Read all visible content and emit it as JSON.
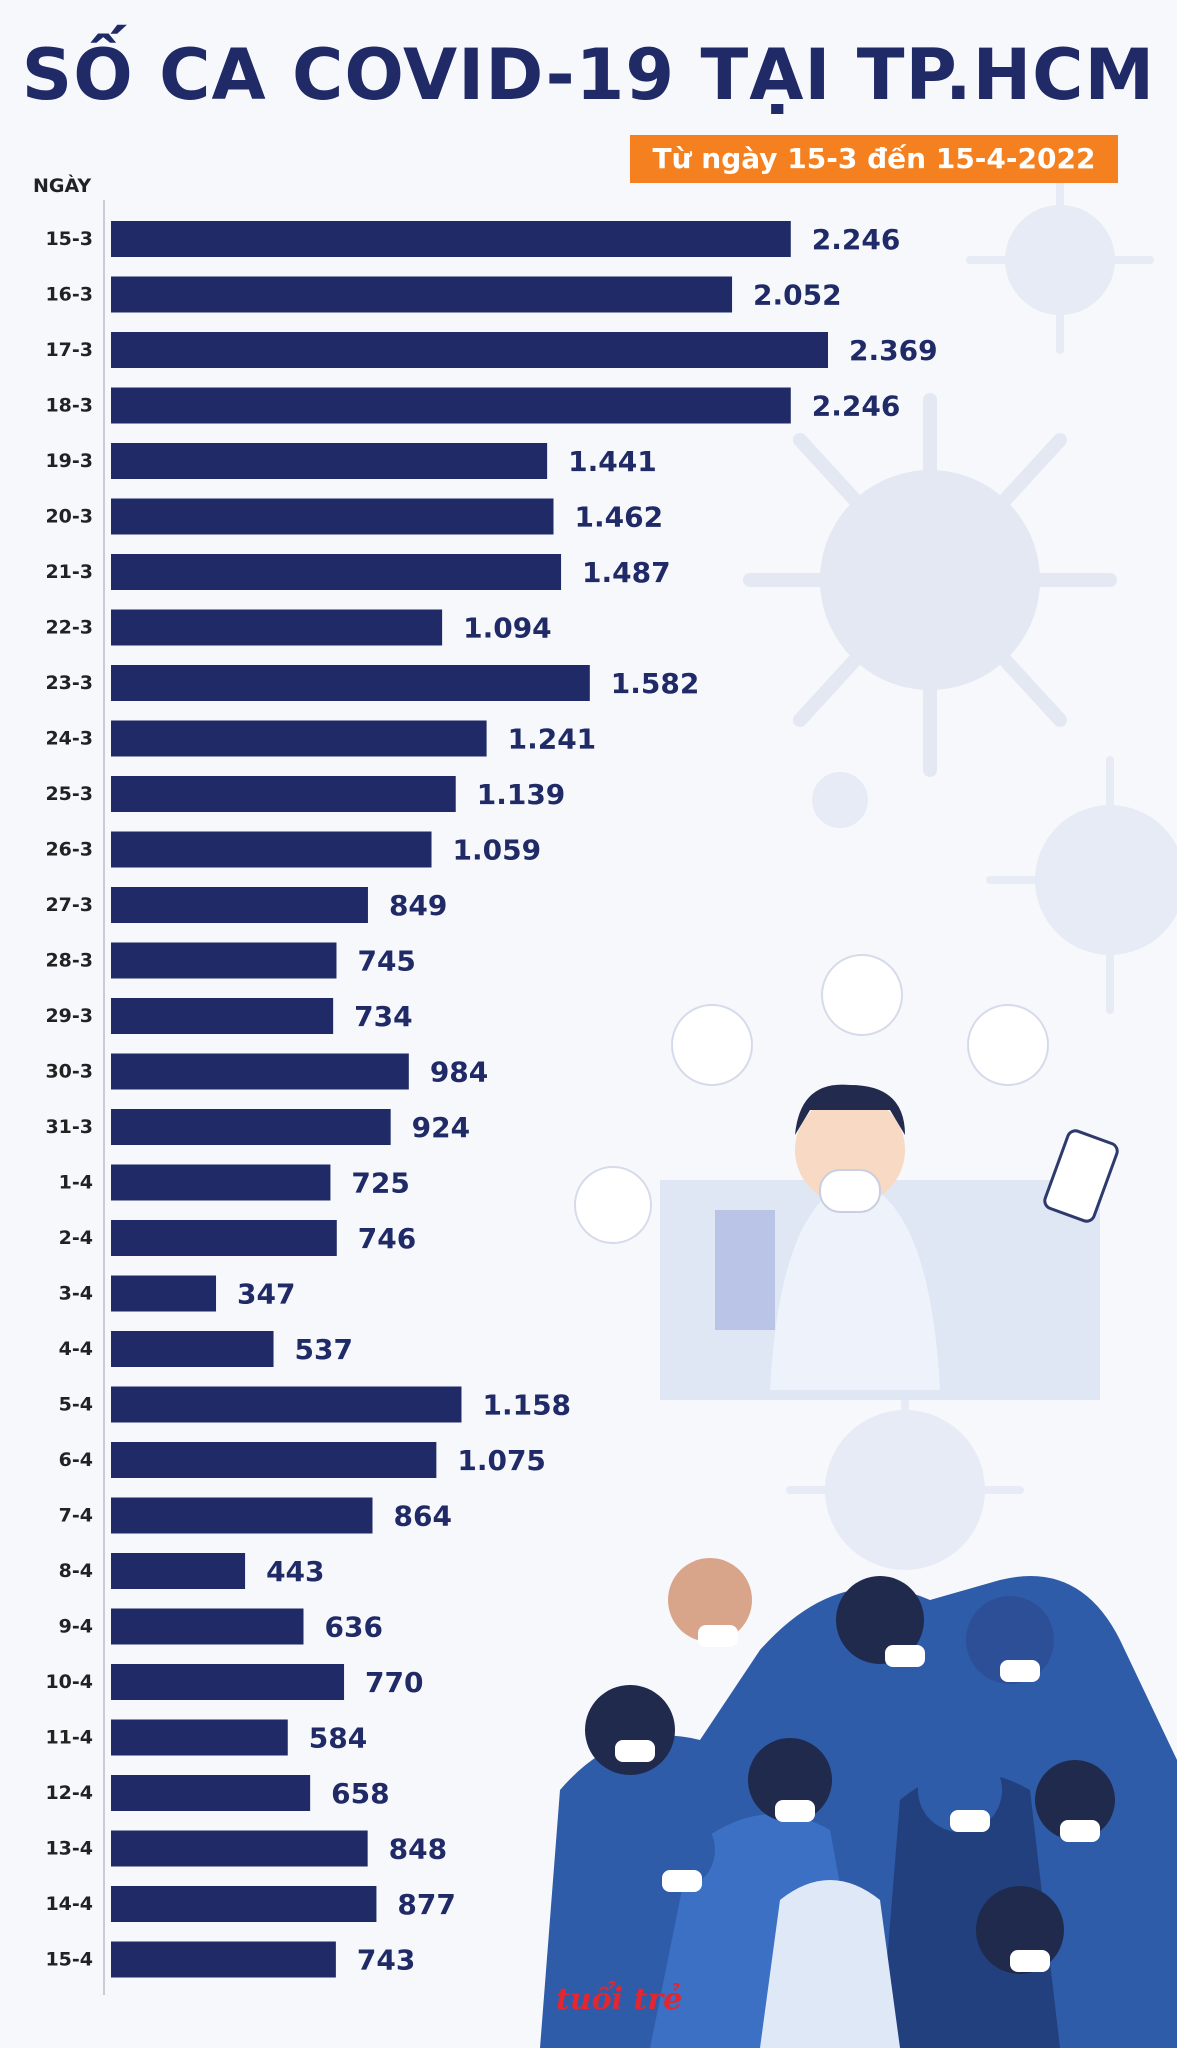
{
  "header": {
    "title": "SỐ CA COVID-19 TẠI TP.HCM",
    "subtitle": "Từ ngày 15-3 đến 15-4-2022",
    "ylabel": "NGÀY"
  },
  "watermark": "tuổi trẻ",
  "colors": {
    "bar": "#1f2a66",
    "accent": "#f4801f",
    "text": "#222222",
    "value": "#1f2a66"
  },
  "chart_data": {
    "type": "bar",
    "orientation": "horizontal",
    "title": "SỐ CA COVID-19 TẠI TP.HCM",
    "subtitle": "Từ ngày 15-3 đến 15-4-2022",
    "ylabel": "NGÀY",
    "xlabel": "",
    "xlim": [
      0,
      2369
    ],
    "categories": [
      "15-3",
      "16-3",
      "17-3",
      "18-3",
      "19-3",
      "20-3",
      "21-3",
      "22-3",
      "23-3",
      "24-3",
      "25-3",
      "26-3",
      "27-3",
      "28-3",
      "29-3",
      "30-3",
      "31-3",
      "1-4",
      "2-4",
      "3-4",
      "4-4",
      "5-4",
      "6-4",
      "7-4",
      "8-4",
      "9-4",
      "10-4",
      "11-4",
      "12-4",
      "13-4",
      "14-4",
      "15-4"
    ],
    "values": [
      2246,
      2052,
      2369,
      2246,
      1441,
      1462,
      1487,
      1094,
      1582,
      1241,
      1139,
      1059,
      849,
      745,
      734,
      984,
      924,
      725,
      746,
      347,
      537,
      1158,
      1075,
      864,
      443,
      636,
      770,
      584,
      658,
      848,
      877,
      743
    ],
    "value_labels": [
      "2.246",
      "2.052",
      "2.369",
      "2.246",
      "1.441",
      "1.462",
      "1.487",
      "1.094",
      "1.582",
      "1.241",
      "1.139",
      "1.059",
      "849",
      "745",
      "734",
      "984",
      "924",
      "725",
      "746",
      "347",
      "537",
      "1.158",
      "1.075",
      "864",
      "443",
      "636",
      "770",
      "584",
      "658",
      "848",
      "877",
      "743"
    ]
  }
}
